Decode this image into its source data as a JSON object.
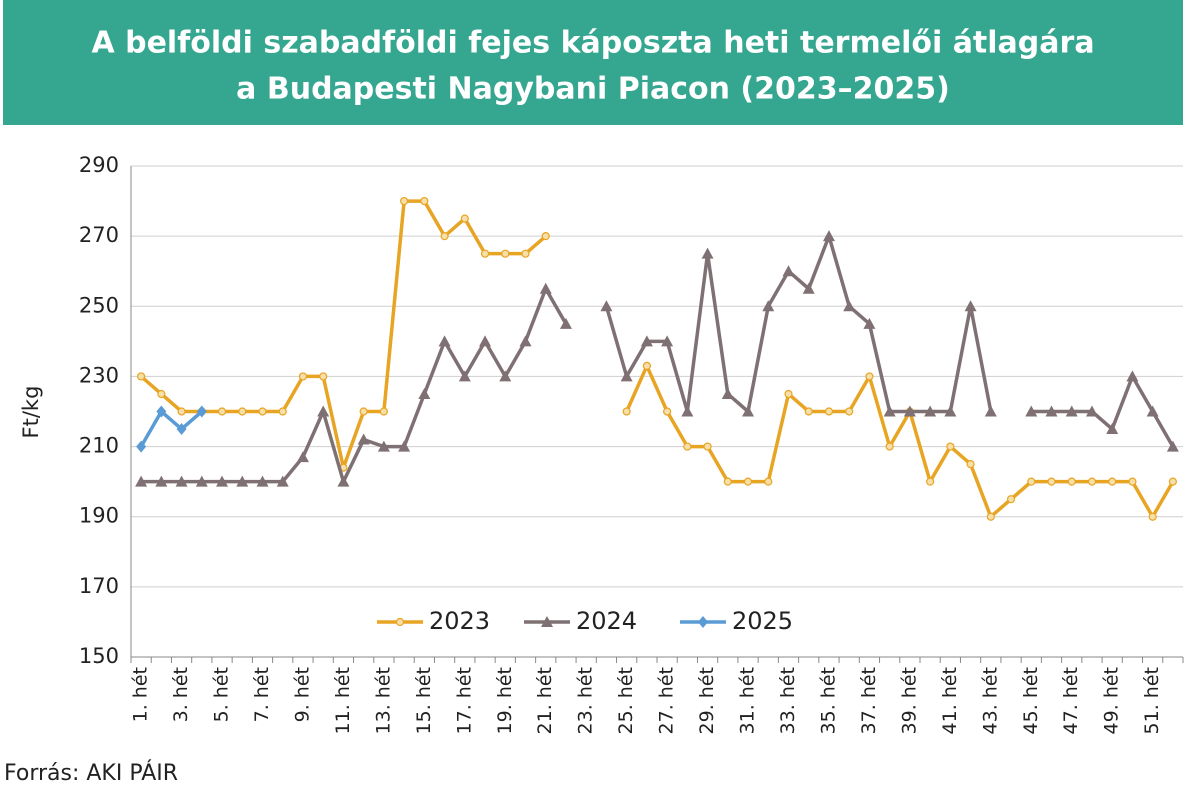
{
  "chart_data": {
    "type": "line",
    "title": [
      "A belföldi szabadföldi fejes káposzta heti termelői átlagára",
      "a Budapesti Nagybani Piacon (2023–2025)"
    ],
    "ylabel": "Ft/kg",
    "source": "Forrás:  AKI PÁIR",
    "categories": [
      "1. hét",
      null,
      "3. hét",
      null,
      "5. hét",
      null,
      "7. hét",
      null,
      "9. hét",
      null,
      "11. hét",
      null,
      "13. hét",
      null,
      "15. hét",
      null,
      "17. hét",
      null,
      "19. hét",
      null,
      "21. hét",
      null,
      "23. hét",
      null,
      "25. hét",
      null,
      "27. hét",
      null,
      "29. hét",
      null,
      "31. hét",
      null,
      "33. hét",
      null,
      "35. hét",
      null,
      "37. hét",
      null,
      "39. hét",
      null,
      "41. hét",
      null,
      "43. hét",
      null,
      "45. hét",
      null,
      "47. hét",
      null,
      "49. hét",
      null,
      "51. hét",
      null
    ],
    "series": [
      {
        "name": "2023",
        "color": "#e8a423",
        "marker": "circle",
        "values": [
          230,
          225,
          220,
          220,
          220,
          220,
          220,
          220,
          230,
          230,
          204,
          220,
          220,
          280,
          280,
          270,
          275,
          265,
          265,
          265,
          270,
          null,
          null,
          null,
          220,
          233,
          220,
          210,
          210,
          200,
          200,
          200,
          225,
          220,
          220,
          220,
          230,
          210,
          220,
          200,
          210,
          205,
          190,
          195,
          200,
          200,
          200,
          200,
          200,
          200,
          190,
          200
        ]
      },
      {
        "name": "2024",
        "color": "#7f7173",
        "marker": "triangle",
        "values": [
          200,
          200,
          200,
          200,
          200,
          200,
          200,
          200,
          207,
          220,
          200,
          212,
          210,
          210,
          225,
          240,
          230,
          240,
          230,
          240,
          255,
          245,
          null,
          250,
          230,
          240,
          240,
          220,
          265,
          225,
          220,
          250,
          260,
          255,
          270,
          250,
          245,
          220,
          220,
          220,
          220,
          250,
          220,
          null,
          220,
          220,
          220,
          220,
          215,
          230,
          220,
          210
        ]
      },
      {
        "name": "2025",
        "color": "#5b9bd5",
        "marker": "diamond",
        "values": [
          210,
          220,
          215,
          220,
          null,
          null,
          null,
          null,
          null,
          null,
          null,
          null,
          null,
          null,
          null,
          null,
          null,
          null,
          null,
          null,
          null,
          null,
          null,
          null,
          null,
          null,
          null,
          null,
          null,
          null,
          null,
          null,
          null,
          null,
          null,
          null,
          null,
          null,
          null,
          null,
          null,
          null,
          null,
          null,
          null,
          null,
          null,
          null,
          null,
          null,
          null,
          null
        ]
      }
    ],
    "ylim": [
      150,
      290
    ],
    "yticks": [
      150,
      170,
      190,
      210,
      230,
      250,
      270,
      290
    ],
    "grid": true,
    "legend": "bottom"
  }
}
